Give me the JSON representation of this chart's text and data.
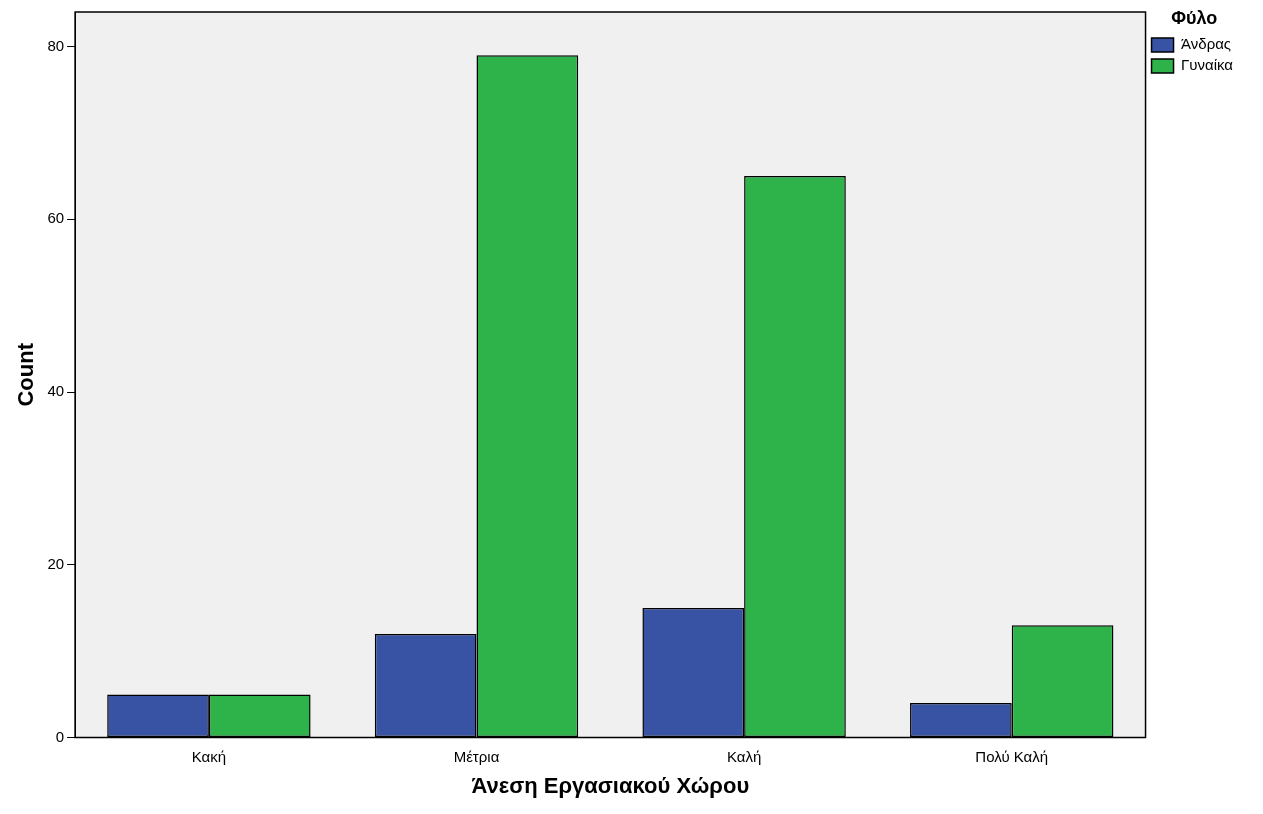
{
  "chart_data": {
    "type": "bar",
    "xlabel": "Άνεση Εργασιακού Χώρου",
    "ylabel": "Count",
    "legend_title": "Φύλο",
    "categories": [
      "Κακή",
      "Μέτρια",
      "Καλή",
      "Πολύ Καλή"
    ],
    "series": [
      {
        "name": "Άνδρας",
        "color": "#3953a4",
        "values": [
          5,
          12,
          15,
          4
        ]
      },
      {
        "name": "Γυναίκα",
        "color": "#2db34a",
        "values": [
          5,
          79,
          65,
          13
        ]
      }
    ],
    "ylim": [
      0,
      84
    ],
    "yticks": [
      0,
      20,
      40,
      60,
      80
    ],
    "grid": false,
    "legend": "top right"
  }
}
